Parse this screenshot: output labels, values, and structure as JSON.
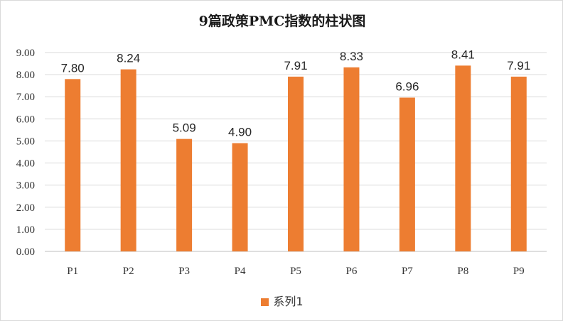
{
  "chart_data": {
    "type": "bar",
    "title": "9篇政策PMC指数的柱状图",
    "xlabel": "",
    "ylabel": "",
    "categories": [
      "P1",
      "P2",
      "P3",
      "P4",
      "P5",
      "P6",
      "P7",
      "P8",
      "P9"
    ],
    "series": [
      {
        "name": "系列1",
        "values": [
          7.8,
          8.24,
          5.09,
          4.9,
          7.91,
          8.33,
          6.96,
          8.41,
          7.91
        ],
        "value_labels": [
          "7.80",
          "8.24",
          "5.09",
          "4.90",
          "7.91",
          "8.33",
          "6.96",
          "8.41",
          "7.91"
        ],
        "color": "#ED7D31"
      }
    ],
    "ylim": [
      0,
      9
    ],
    "yticks": [
      "0.00",
      "1.00",
      "2.00",
      "3.00",
      "4.00",
      "5.00",
      "6.00",
      "7.00",
      "8.00",
      "9.00"
    ],
    "grid": true,
    "legend_position": "bottom"
  }
}
